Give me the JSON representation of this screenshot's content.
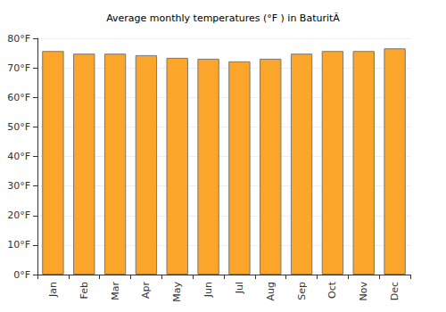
{
  "chart_data": {
    "type": "bar",
    "title": "Average monthly temperatures (°F ) in BaturitÃ",
    "categories": [
      "Jan",
      "Feb",
      "Mar",
      "Apr",
      "May",
      "Jun",
      "Jul",
      "Aug",
      "Sep",
      "Oct",
      "Nov",
      "Dec"
    ],
    "values": [
      75.7,
      74.8,
      74.8,
      74.3,
      73.4,
      73.1,
      72.2,
      73.1,
      74.8,
      75.7,
      75.7,
      76.6
    ],
    "color": "#fba52a",
    "ylim": [
      0,
      80
    ],
    "yticks": [
      {
        "value": 0,
        "label": "0°F"
      },
      {
        "value": 10,
        "label": "10°F"
      },
      {
        "value": 20,
        "label": "20°F"
      },
      {
        "value": 30,
        "label": "30°F"
      },
      {
        "value": 40,
        "label": "40°F"
      },
      {
        "value": 50,
        "label": "50°F"
      },
      {
        "value": 60,
        "label": "60°F"
      },
      {
        "value": 70,
        "label": "70°F"
      },
      {
        "value": 80,
        "label": "80°F"
      }
    ],
    "grid": true
  }
}
